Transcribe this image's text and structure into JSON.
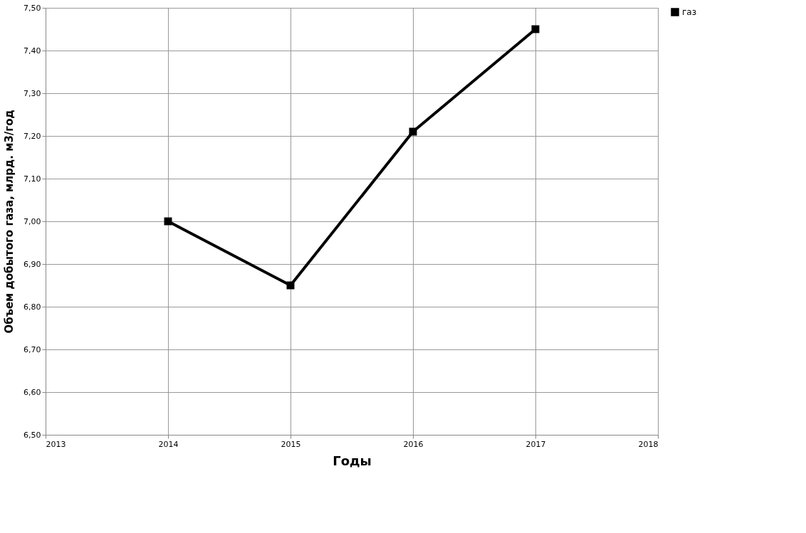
{
  "chart_data": {
    "type": "line",
    "xlabel": "Годы",
    "ylabel": "Объем добытого газа, млрд. м3/год",
    "x": [
      2014,
      2015,
      2016,
      2017
    ],
    "series": [
      {
        "name": "газ",
        "color": "#000000",
        "values": [
          7.0,
          6.85,
          7.21,
          7.45
        ]
      }
    ],
    "xlim": [
      2013,
      2018
    ],
    "xticks": [
      2013,
      2014,
      2015,
      2016,
      2017,
      2018
    ],
    "ylim": [
      6.5,
      7.5
    ],
    "yticks": [
      {
        "value": 6.5,
        "label": "6,50"
      },
      {
        "value": 6.6,
        "label": "6,60"
      },
      {
        "value": 6.7,
        "label": "6,70"
      },
      {
        "value": 6.8,
        "label": "6,80"
      },
      {
        "value": 6.9,
        "label": "6,90"
      },
      {
        "value": 7.0,
        "label": "7,00"
      },
      {
        "value": 7.1,
        "label": "7,10"
      },
      {
        "value": 7.2,
        "label": "7,20"
      },
      {
        "value": 7.3,
        "label": "7,30"
      },
      {
        "value": 7.4,
        "label": "7,40"
      },
      {
        "value": 7.5,
        "label": "7,50"
      }
    ],
    "grid": true,
    "legend": "right",
    "marker": "square",
    "line_style": "solid"
  }
}
